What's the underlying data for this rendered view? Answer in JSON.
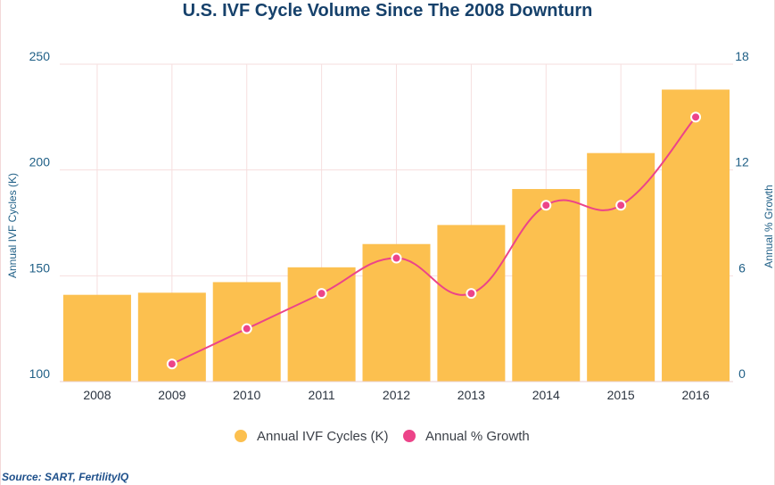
{
  "chart_data": {
    "type": "bar",
    "title": "U.S. IVF Cycle Volume Since The 2008 Downturn",
    "categories": [
      "2008",
      "2009",
      "2010",
      "2011",
      "2012",
      "2013",
      "2014",
      "2015",
      "2016"
    ],
    "series": [
      {
        "name": "Annual IVF Cycles (K)",
        "type": "bar",
        "axis": "left",
        "color": "#fcc04f",
        "values": [
          141,
          142,
          147,
          154,
          165,
          174,
          191,
          208,
          238
        ]
      },
      {
        "name": "Annual % Growth",
        "type": "line",
        "axis": "right",
        "color": "#ec4489",
        "values": [
          null,
          1,
          3,
          5,
          7,
          5,
          10,
          10,
          15
        ]
      }
    ],
    "y_left": {
      "label": "Annual IVF Cycles (K)",
      "range": [
        100,
        250
      ],
      "ticks": [
        100,
        150,
        200,
        250
      ]
    },
    "y_right": {
      "label": "Annual % Growth",
      "range": [
        0,
        18
      ],
      "ticks": [
        0,
        6,
        12,
        18
      ]
    },
    "grid": true,
    "legend_position": "bottom"
  },
  "source": "Source: SART, FertilityIQ"
}
